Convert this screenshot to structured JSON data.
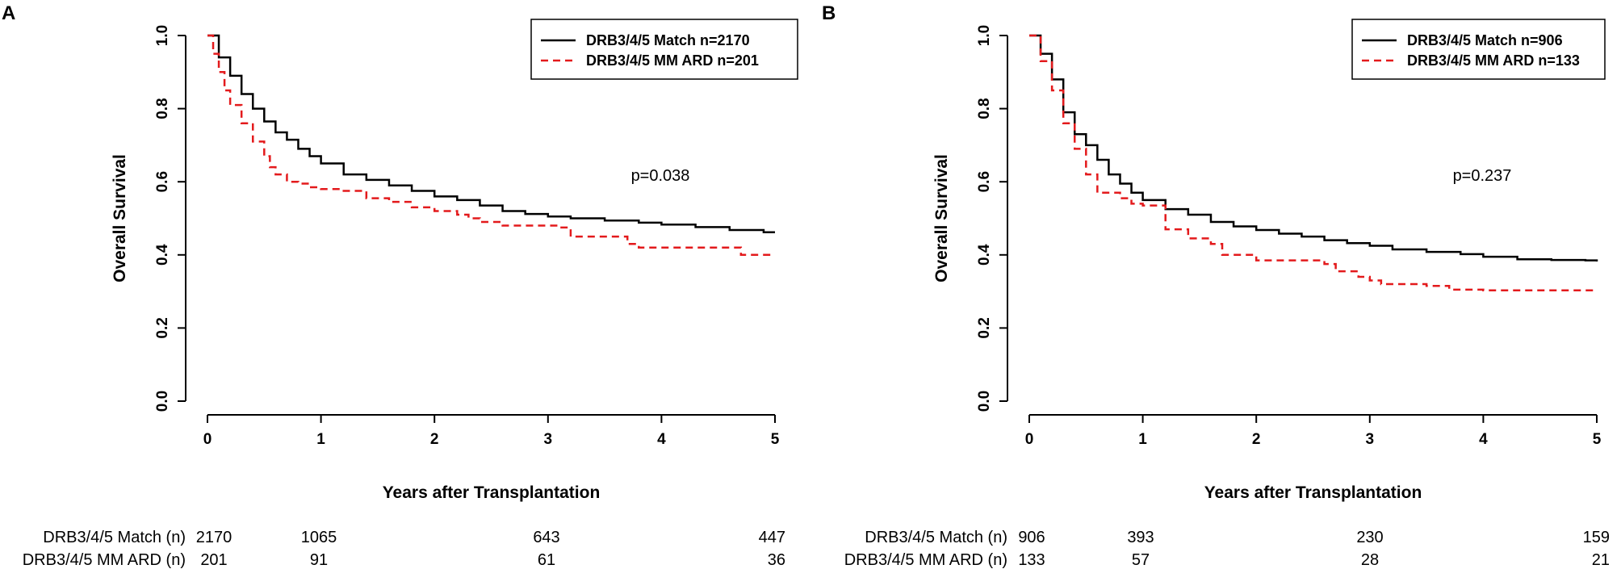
{
  "chart_data": [
    {
      "type": "line",
      "panel": "A",
      "xlabel": "Years after Transplantation",
      "ylabel": "Overall Survival",
      "xlim": [
        0,
        5
      ],
      "ylim": [
        0,
        1
      ],
      "xticks": [
        "0",
        "1",
        "2",
        "3",
        "4",
        "5"
      ],
      "yticks": [
        "0.0",
        "0.2",
        "0.4",
        "0.6",
        "0.8",
        "1.0"
      ],
      "p_value": "p=0.038",
      "legend_position": "top-right",
      "series": [
        {
          "name": "DRB3/4/5 Match n=2170",
          "color": "#000000",
          "style": "solid",
          "points": [
            [
              0,
              1.0
            ],
            [
              0.1,
              0.94
            ],
            [
              0.2,
              0.89
            ],
            [
              0.3,
              0.84
            ],
            [
              0.4,
              0.8
            ],
            [
              0.5,
              0.765
            ],
            [
              0.6,
              0.735
            ],
            [
              0.7,
              0.715
            ],
            [
              0.8,
              0.69
            ],
            [
              0.9,
              0.67
            ],
            [
              1.0,
              0.65
            ],
            [
              1.2,
              0.62
            ],
            [
              1.4,
              0.605
            ],
            [
              1.6,
              0.59
            ],
            [
              1.8,
              0.575
            ],
            [
              2.0,
              0.56
            ],
            [
              2.2,
              0.55
            ],
            [
              2.4,
              0.535
            ],
            [
              2.6,
              0.52
            ],
            [
              2.8,
              0.512
            ],
            [
              3.0,
              0.505
            ],
            [
              3.2,
              0.5
            ],
            [
              3.5,
              0.494
            ],
            [
              3.8,
              0.488
            ],
            [
              4.0,
              0.483
            ],
            [
              4.3,
              0.476
            ],
            [
              4.6,
              0.468
            ],
            [
              4.9,
              0.462
            ],
            [
              5.0,
              0.462
            ]
          ]
        },
        {
          "name": "DRB3/4/5 MM ARD n=201",
          "color": "#e31a1c",
          "style": "dashed",
          "points": [
            [
              0,
              1.0
            ],
            [
              0.05,
              0.95
            ],
            [
              0.1,
              0.9
            ],
            [
              0.15,
              0.85
            ],
            [
              0.2,
              0.81
            ],
            [
              0.3,
              0.76
            ],
            [
              0.4,
              0.71
            ],
            [
              0.5,
              0.67
            ],
            [
              0.55,
              0.64
            ],
            [
              0.6,
              0.62
            ],
            [
              0.7,
              0.6
            ],
            [
              0.8,
              0.595
            ],
            [
              0.9,
              0.585
            ],
            [
              1.0,
              0.58
            ],
            [
              1.2,
              0.575
            ],
            [
              1.4,
              0.555
            ],
            [
              1.6,
              0.545
            ],
            [
              1.8,
              0.53
            ],
            [
              2.0,
              0.52
            ],
            [
              2.2,
              0.51
            ],
            [
              2.3,
              0.5
            ],
            [
              2.4,
              0.49
            ],
            [
              2.6,
              0.48
            ],
            [
              2.8,
              0.48
            ],
            [
              3.0,
              0.48
            ],
            [
              3.1,
              0.475
            ],
            [
              3.2,
              0.45
            ],
            [
              3.5,
              0.45
            ],
            [
              3.7,
              0.43
            ],
            [
              3.8,
              0.42
            ],
            [
              4.0,
              0.42
            ],
            [
              4.2,
              0.42
            ],
            [
              4.6,
              0.42
            ],
            [
              4.7,
              0.4
            ],
            [
              4.9,
              0.4
            ],
            [
              5.0,
              0.4
            ]
          ]
        }
      ],
      "risk_table": {
        "rows": [
          {
            "label": "DRB3/4/5 Match (n)",
            "counts": [
              "2170",
              "1065",
              "643",
              "447"
            ]
          },
          {
            "label": "DRB3/4/5 MM ARD (n)",
            "counts": [
              "201",
              "91",
              "61",
              "36"
            ]
          }
        ]
      }
    },
    {
      "type": "line",
      "panel": "B",
      "xlabel": "Years after Transplantation",
      "ylabel": "Overall Survival",
      "xlim": [
        0,
        5
      ],
      "ylim": [
        0,
        1
      ],
      "xticks": [
        "0",
        "1",
        "2",
        "3",
        "4",
        "5"
      ],
      "yticks": [
        "0.0",
        "0.2",
        "0.4",
        "0.6",
        "0.8",
        "1.0"
      ],
      "p_value": "p=0.237",
      "legend_position": "top-right",
      "series": [
        {
          "name": "DRB3/4/5 Match n=906",
          "color": "#000000",
          "style": "solid",
          "points": [
            [
              0,
              1.0
            ],
            [
              0.1,
              0.95
            ],
            [
              0.2,
              0.88
            ],
            [
              0.3,
              0.79
            ],
            [
              0.4,
              0.73
            ],
            [
              0.5,
              0.7
            ],
            [
              0.6,
              0.66
            ],
            [
              0.7,
              0.62
            ],
            [
              0.8,
              0.595
            ],
            [
              0.9,
              0.57
            ],
            [
              1.0,
              0.55
            ],
            [
              1.2,
              0.525
            ],
            [
              1.4,
              0.51
            ],
            [
              1.6,
              0.49
            ],
            [
              1.8,
              0.478
            ],
            [
              2.0,
              0.468
            ],
            [
              2.2,
              0.458
            ],
            [
              2.4,
              0.45
            ],
            [
              2.6,
              0.44
            ],
            [
              2.8,
              0.432
            ],
            [
              3.0,
              0.425
            ],
            [
              3.2,
              0.415
            ],
            [
              3.5,
              0.408
            ],
            [
              3.8,
              0.402
            ],
            [
              4.0,
              0.395
            ],
            [
              4.3,
              0.388
            ],
            [
              4.6,
              0.386
            ],
            [
              4.9,
              0.385
            ],
            [
              5.0,
              0.382
            ]
          ]
        },
        {
          "name": "DRB3/4/5 MM ARD n=133",
          "color": "#e31a1c",
          "style": "dashed",
          "points": [
            [
              0,
              1.0
            ],
            [
              0.1,
              0.93
            ],
            [
              0.2,
              0.85
            ],
            [
              0.3,
              0.76
            ],
            [
              0.4,
              0.69
            ],
            [
              0.5,
              0.62
            ],
            [
              0.6,
              0.57
            ],
            [
              0.8,
              0.555
            ],
            [
              0.9,
              0.54
            ],
            [
              1.0,
              0.535
            ],
            [
              1.2,
              0.47
            ],
            [
              1.4,
              0.445
            ],
            [
              1.6,
              0.43
            ],
            [
              1.7,
              0.4
            ],
            [
              2.0,
              0.385
            ],
            [
              2.4,
              0.385
            ],
            [
              2.6,
              0.375
            ],
            [
              2.7,
              0.355
            ],
            [
              2.9,
              0.34
            ],
            [
              3.0,
              0.33
            ],
            [
              3.1,
              0.32
            ],
            [
              3.5,
              0.315
            ],
            [
              3.7,
              0.305
            ],
            [
              4.0,
              0.303
            ],
            [
              4.5,
              0.303
            ],
            [
              5.0,
              0.303
            ]
          ]
        }
      ],
      "risk_table": {
        "rows": [
          {
            "label": "DRB3/4/5 Match (n)",
            "counts": [
              "906",
              "393",
              "230",
              "159"
            ]
          },
          {
            "label": "DRB3/4/5 MM ARD (n)",
            "counts": [
              "133",
              "57",
              "28",
              "21"
            ]
          }
        ]
      }
    }
  ]
}
